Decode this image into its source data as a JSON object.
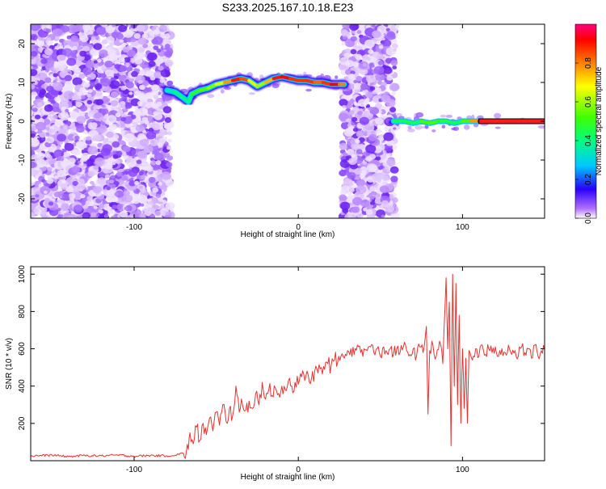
{
  "colors": {
    "snr_line": "#e8312f",
    "spectrogram_background_noise": "#9b59f0",
    "spectrogram_ridge": "#ff2020",
    "frame": "#000000"
  },
  "chart_data": [
    {
      "type": "heatmap",
      "title": "S233.2025.167.10.18.E23",
      "xlabel": "Height of straight line (km)",
      "ylabel": "Frequency (Hz)",
      "xlim": [
        -163,
        150
      ],
      "ylim": [
        -25,
        25
      ],
      "xticks": [
        -100,
        0,
        100
      ],
      "yticks": [
        -20,
        -10,
        0,
        10,
        20
      ],
      "grid": false,
      "colorbar": {
        "label": "Normalized spectral amplitude",
        "range": [
          0,
          1
        ],
        "ticks": [
          "0.0",
          "0.2",
          "0.4",
          "0.6",
          "0.8"
        ],
        "colormap": "rainbow"
      },
      "noise_regions_x": [
        [
          -163,
          -78
        ],
        [
          27,
          59
        ]
      ],
      "ridges": [
        {
          "x": [
            -80,
            -75,
            -70,
            -67,
            -65,
            -60,
            -55,
            -50,
            -45,
            -40,
            -35,
            -30,
            -25,
            -20,
            -15,
            -10,
            -5,
            0,
            5,
            10,
            15,
            20,
            25,
            28
          ],
          "y": [
            8,
            7.5,
            6,
            5,
            7,
            8,
            8.5,
            9.5,
            10,
            10.5,
            11,
            10.5,
            9,
            10,
            11,
            11.5,
            11,
            10.5,
            10.5,
            10,
            10,
            9.5,
            9.5,
            9.5
          ],
          "amp": [
            0.3,
            0.4,
            0.4,
            0.35,
            0.45,
            0.5,
            0.55,
            0.6,
            0.7,
            0.85,
            0.95,
            0.75,
            0.55,
            0.65,
            0.85,
            0.95,
            0.9,
            0.85,
            0.9,
            0.85,
            0.8,
            0.95,
            0.9,
            0.7
          ]
        },
        {
          "x": [
            58,
            65,
            70,
            75,
            80,
            85,
            90,
            95,
            100,
            105,
            110,
            120,
            130,
            140,
            150
          ],
          "y": [
            0,
            0,
            -0.5,
            0,
            -0.5,
            0,
            0,
            -0.5,
            0,
            0,
            0,
            0,
            0,
            0,
            0
          ],
          "amp": [
            0.35,
            0.5,
            0.4,
            0.45,
            0.6,
            0.45,
            0.5,
            0.4,
            0.45,
            0.6,
            0.95,
            0.95,
            0.95,
            0.95,
            0.95
          ]
        }
      ]
    },
    {
      "type": "line",
      "xlabel": "Height of straight line (km)",
      "ylabel": "SNR (10 * v/v)",
      "xlim": [
        -163,
        150
      ],
      "ylim": [
        0,
        1040
      ],
      "xticks": [
        -100,
        0,
        100
      ],
      "yticks": [
        200,
        400,
        600,
        800,
        1000
      ],
      "grid": false,
      "series": [
        {
          "x": [
            -163,
            -150,
            -140,
            -130,
            -120,
            -110,
            -100,
            -90,
            -80,
            -75,
            -70,
            -67,
            -66,
            -64,
            -62,
            -60,
            -58,
            -56,
            -54,
            -52,
            -50,
            -48,
            -46,
            -44,
            -42,
            -40,
            -38,
            -36,
            -34,
            -32,
            -30,
            -28,
            -26,
            -24,
            -22,
            -20,
            -18,
            -16,
            -14,
            -12,
            -10,
            -8,
            -6,
            -4,
            -2,
            0,
            2,
            4,
            6,
            8,
            10,
            12,
            14,
            16,
            18,
            20,
            22,
            24,
            26,
            28,
            30,
            32,
            34,
            36,
            38,
            40,
            42,
            44,
            46,
            48,
            50,
            52,
            54,
            56,
            58,
            60,
            62,
            64,
            66,
            68,
            70,
            72,
            74,
            76,
            78,
            79,
            80,
            82,
            84,
            86,
            88,
            90,
            91,
            92,
            93,
            94,
            95,
            96,
            97,
            98,
            99,
            100,
            101,
            102,
            103,
            104,
            106,
            108,
            110,
            112,
            114,
            116,
            118,
            120,
            122,
            124,
            126,
            128,
            130,
            132,
            134,
            136,
            138,
            140,
            142,
            144,
            146,
            148,
            150
          ],
          "y": [
            25,
            30,
            22,
            28,
            26,
            30,
            24,
            28,
            26,
            30,
            40,
            60,
            150,
            90,
            180,
            110,
            200,
            140,
            230,
            160,
            260,
            190,
            300,
            210,
            280,
            240,
            400,
            260,
            300,
            270,
            320,
            280,
            360,
            300,
            420,
            330,
            380,
            350,
            390,
            360,
            400,
            380,
            430,
            400,
            420,
            410,
            450,
            430,
            460,
            440,
            480,
            470,
            500,
            490,
            520,
            510,
            540,
            530,
            560,
            550,
            590,
            600,
            570,
            620,
            580,
            600,
            590,
            610,
            580,
            600,
            560,
            610,
            580,
            600,
            570,
            600,
            580,
            610,
            590,
            570,
            600,
            560,
            610,
            580,
            720,
            250,
            590,
            620,
            560,
            640,
            520,
            980,
            600,
            850,
            80,
            1000,
            400,
            950,
            300,
            780,
            200,
            600,
            280,
            550,
            200,
            590,
            540,
            600,
            560,
            620,
            570,
            600,
            580,
            610,
            560,
            600,
            580,
            620,
            570,
            590,
            560,
            610,
            580,
            600,
            550,
            620,
            560,
            590,
            600
          ]
        }
      ]
    }
  ]
}
